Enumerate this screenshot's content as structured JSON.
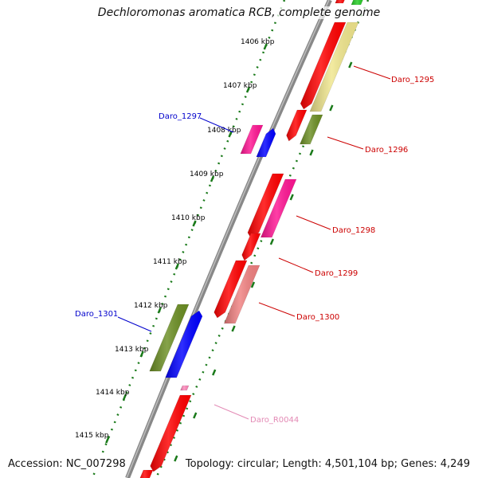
{
  "title": "Dechloromonas aromatica RCB, complete genome",
  "accession": "Accession: NC_007298",
  "topology": "Topology: circular; Length: 4,501,104 bp; Genes: 4,249",
  "ticks": [
    "1406 kbp",
    "1407 kbp",
    "1408 kbp",
    "1409 kbp",
    "1410 kbp",
    "1411 kbp",
    "1412 kbp",
    "1413 kbp",
    "1414 kbp",
    "1415 kbp"
  ],
  "labels": [
    {
      "id": "daro-1295",
      "text": "Daro_1295",
      "color": "#cc0000"
    },
    {
      "id": "daro-1296",
      "text": "Daro_1296",
      "color": "#cc0000"
    },
    {
      "id": "daro-1297",
      "text": "Daro_1297",
      "color": "#0000cc"
    },
    {
      "id": "daro-1298",
      "text": "Daro_1298",
      "color": "#cc0000"
    },
    {
      "id": "daro-1299",
      "text": "Daro_1299",
      "color": "#cc0000"
    },
    {
      "id": "daro-1300",
      "text": "Daro_1300",
      "color": "#cc0000"
    },
    {
      "id": "daro-1301",
      "text": "Daro_1301",
      "color": "#0000cc"
    },
    {
      "id": "daro-r0044",
      "text": "Daro_R0044",
      "color": "#e38ab5"
    }
  ],
  "colors": {
    "backbone": "#888888",
    "dots": "#1a7a1a",
    "red": "#ff0000",
    "magenta": "#ff1493",
    "blue": "#0000ff",
    "olive": "#6b8e23",
    "khaki": "#f0e68c",
    "salmon": "#f08080",
    "pink": "#ff88bb",
    "green": "#22cc22"
  }
}
